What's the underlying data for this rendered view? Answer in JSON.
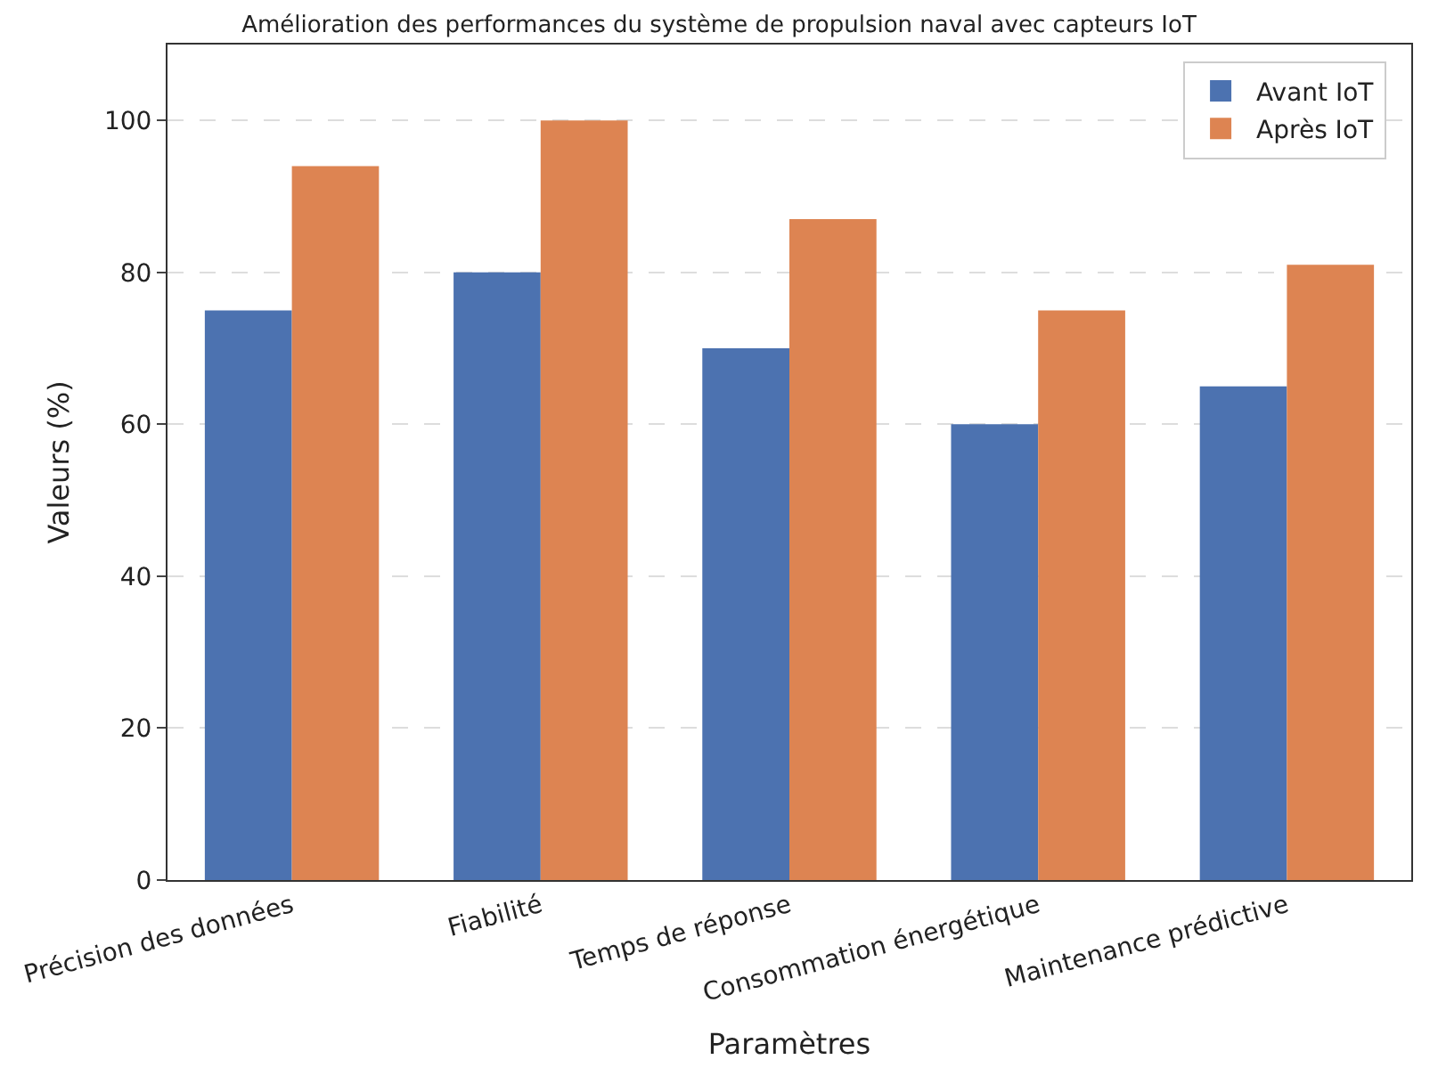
{
  "chart_data": {
    "type": "bar",
    "title": "Amélioration des performances du système de propulsion naval avec capteurs IoT",
    "xlabel": "Paramètres",
    "ylabel": "Valeurs (%)",
    "categories": [
      "Précision des données",
      "Fiabilité",
      "Temps de réponse",
      "Consommation énergétique",
      "Maintenance prédictive"
    ],
    "series": [
      {
        "name": "Avant IoT",
        "color": "#4c72b0",
        "values": [
          75,
          80,
          70,
          60,
          65
        ]
      },
      {
        "name": "Après IoT",
        "color": "#dd8452",
        "values": [
          94,
          100,
          87,
          75,
          81
        ]
      }
    ],
    "ylim": [
      0,
      110
    ],
    "yticks": [
      0,
      20,
      40,
      60,
      80,
      100
    ],
    "grid": "y",
    "legend": "top right"
  }
}
